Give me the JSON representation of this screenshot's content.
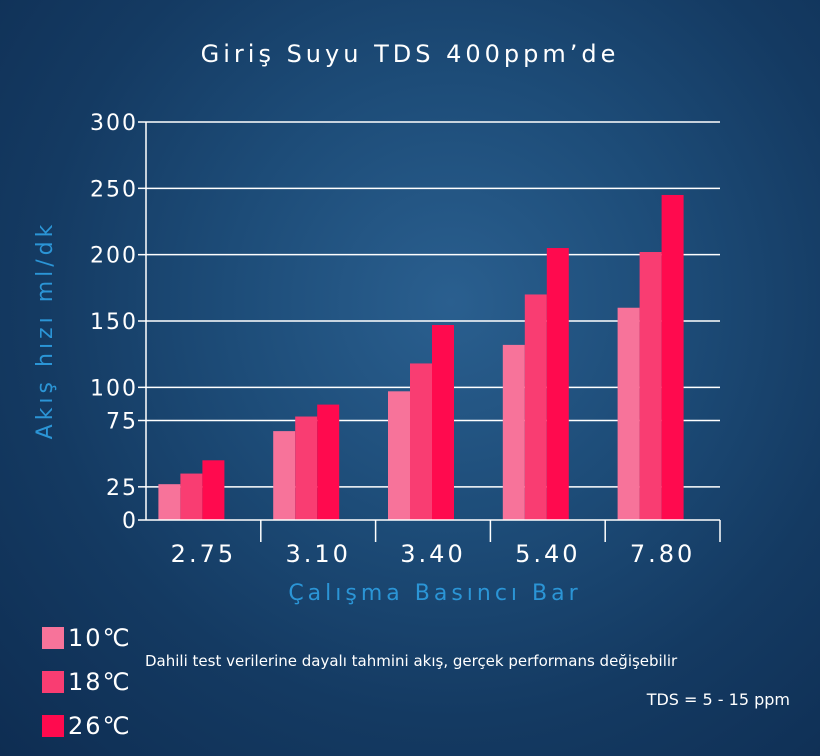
{
  "chart_data": {
    "type": "bar",
    "title": "Giriş Suyu TDS 400ppm’de",
    "xlabel": "Çalışma Basıncı Bar",
    "ylabel": "Akış hızı ml/dk",
    "categories": [
      "2.75",
      "3.10",
      "3.40",
      "5.40",
      "7.80"
    ],
    "ylim": [
      0,
      300
    ],
    "yticks": [
      "0",
      "25",
      "75",
      "100",
      "150",
      "200",
      "250",
      "300"
    ],
    "grid": true,
    "legend_position": "bottom-left",
    "series": [
      {
        "name": "10℃",
        "color": "#f7739a",
        "values": [
          27,
          67,
          97,
          132,
          160
        ]
      },
      {
        "name": "18℃",
        "color": "#f93d72",
        "values": [
          35,
          78,
          118,
          170,
          202
        ]
      },
      {
        "name": "26℃",
        "color": "#ff0a4e",
        "values": [
          45,
          87,
          147,
          205,
          245
        ]
      }
    ]
  },
  "notes": {
    "disclaimer": "Dahili test verilerine dayalı tahmini akış, gerçek performans değişebilir",
    "tds": "TDS = 5 - 15 ppm"
  }
}
